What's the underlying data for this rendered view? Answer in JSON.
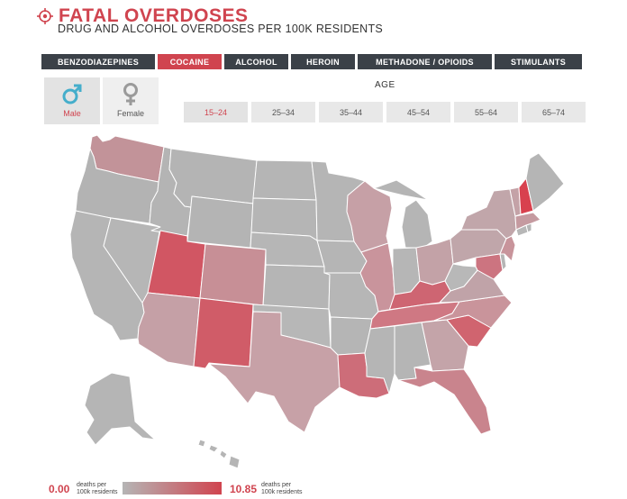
{
  "header": {
    "title": "FATAL OVERDOSES",
    "subtitle": "DRUG AND ALCOHOL OVERDOSES PER 100K RESIDENTS"
  },
  "drug_tabs": [
    {
      "label": "BENZODIAZEPINES",
      "active": false
    },
    {
      "label": "COCAINE",
      "active": true
    },
    {
      "label": "ALCOHOL",
      "active": false
    },
    {
      "label": "HEROIN",
      "active": false
    },
    {
      "label": "METHADONE / OPIOIDS",
      "active": false
    },
    {
      "label": "STIMULANTS",
      "active": false
    }
  ],
  "sex": {
    "male_label": "Male",
    "female_label": "Female",
    "selected": "Male"
  },
  "age": {
    "label": "AGE",
    "options": [
      "15–24",
      "25–34",
      "35–44",
      "45–54",
      "55–64",
      "65–74"
    ],
    "selected": "15–24"
  },
  "legend": {
    "min_value": "0.00",
    "max_value": "10.85",
    "unit_line1": "deaths per",
    "unit_line2": "100k residents"
  },
  "colors": {
    "accent": "#d0444f",
    "tab_dark": "#3b4148",
    "state_base": "#b5b5b5",
    "state_max": "#d0444f"
  }
}
